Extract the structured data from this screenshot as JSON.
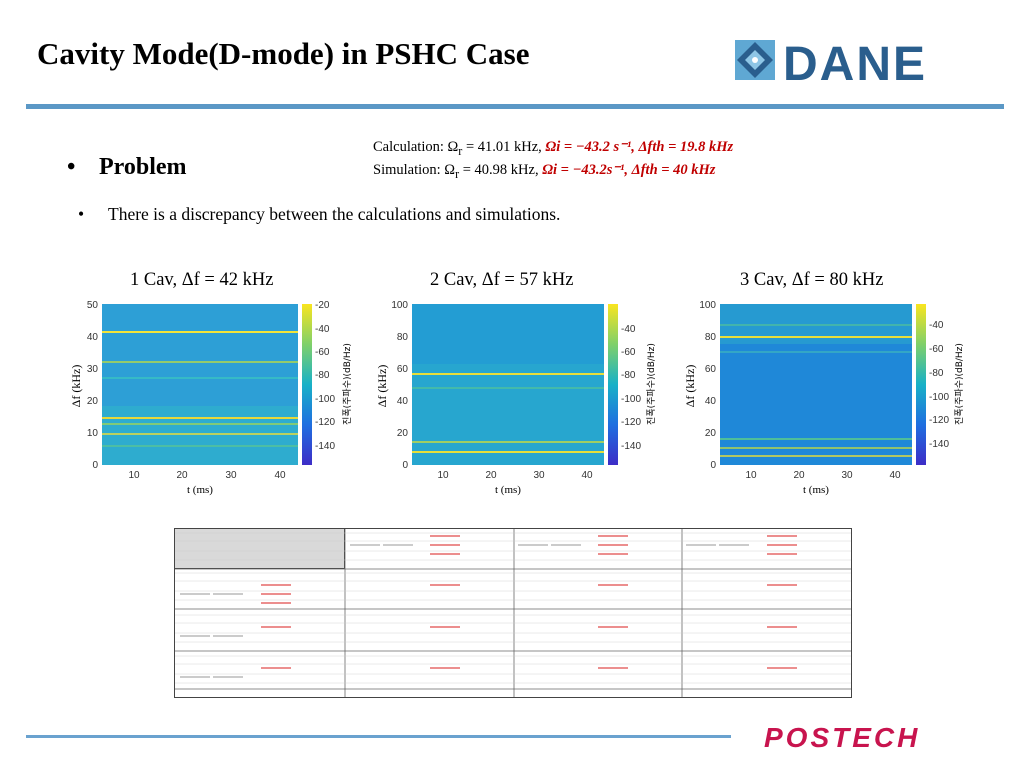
{
  "slide": {
    "title": "Cavity Mode(D-mode) in PSHC Case",
    "problem_label": "Problem",
    "bullet_dot": "•",
    "discrepancy": "There is a discrepancy between the calculations and simulations.",
    "calc_line_prefix": "Calculation: Ω",
    "calc_line_sub": "r",
    "calc_line_mid": " = 41.01 kHz,  ",
    "calc_line_red": "Ωi = −43.2 s⁻¹,  Δfth = 19.8 kHz",
    "sim_line_prefix": "Simulation: Ω",
    "sim_line_sub": "r",
    "sim_line_mid": " = 40.98 kHz,  ",
    "sim_line_red": "Ωi = −43.2s⁻¹,  Δfth = 40 kHz"
  },
  "logos": {
    "dane": "DANE",
    "postech": "POSTECH"
  },
  "colors": {
    "accent_bar": "#5b98c6",
    "red": "#c00000",
    "postech": "#c8144e",
    "dane": "#2a5e8d"
  },
  "charts": [
    {
      "title": "1 Cav, Δf = 42 kHz",
      "ylabel": "Δf (kHz)",
      "xlabel": "t (ms)",
      "cbar_label": "진폭(주파수)(dB/Hz)",
      "yticks": [
        "50",
        "40",
        "30",
        "20",
        "10",
        "0"
      ],
      "xticks": [
        "10",
        "20",
        "30",
        "40"
      ],
      "cticks": [
        "-20",
        "-40",
        "-60",
        "-80",
        "-100",
        "-120",
        "-140"
      ]
    },
    {
      "title": "2 Cav, Δf = 57 kHz",
      "ylabel": "Δf (kHz)",
      "xlabel": "t (ms)",
      "cbar_label": "진폭(주파수)(dB/Hz)",
      "yticks": [
        "100",
        "80",
        "60",
        "40",
        "20",
        "0"
      ],
      "xticks": [
        "10",
        "20",
        "30",
        "40"
      ],
      "cticks": [
        "-40",
        "-60",
        "-80",
        "-100",
        "-120",
        "-140"
      ]
    },
    {
      "title": "3 Cav, Δf = 80 kHz",
      "ylabel": "Δf (kHz)",
      "xlabel": "t (ms)",
      "cbar_label": "진폭(주파수)(dB/Hz)",
      "yticks": [
        "100",
        "80",
        "60",
        "40",
        "20",
        "0"
      ],
      "xticks": [
        "10",
        "20",
        "30",
        "40"
      ],
      "cticks": [
        "-40",
        "-60",
        "-80",
        "-100",
        "-120",
        "-140"
      ]
    }
  ]
}
